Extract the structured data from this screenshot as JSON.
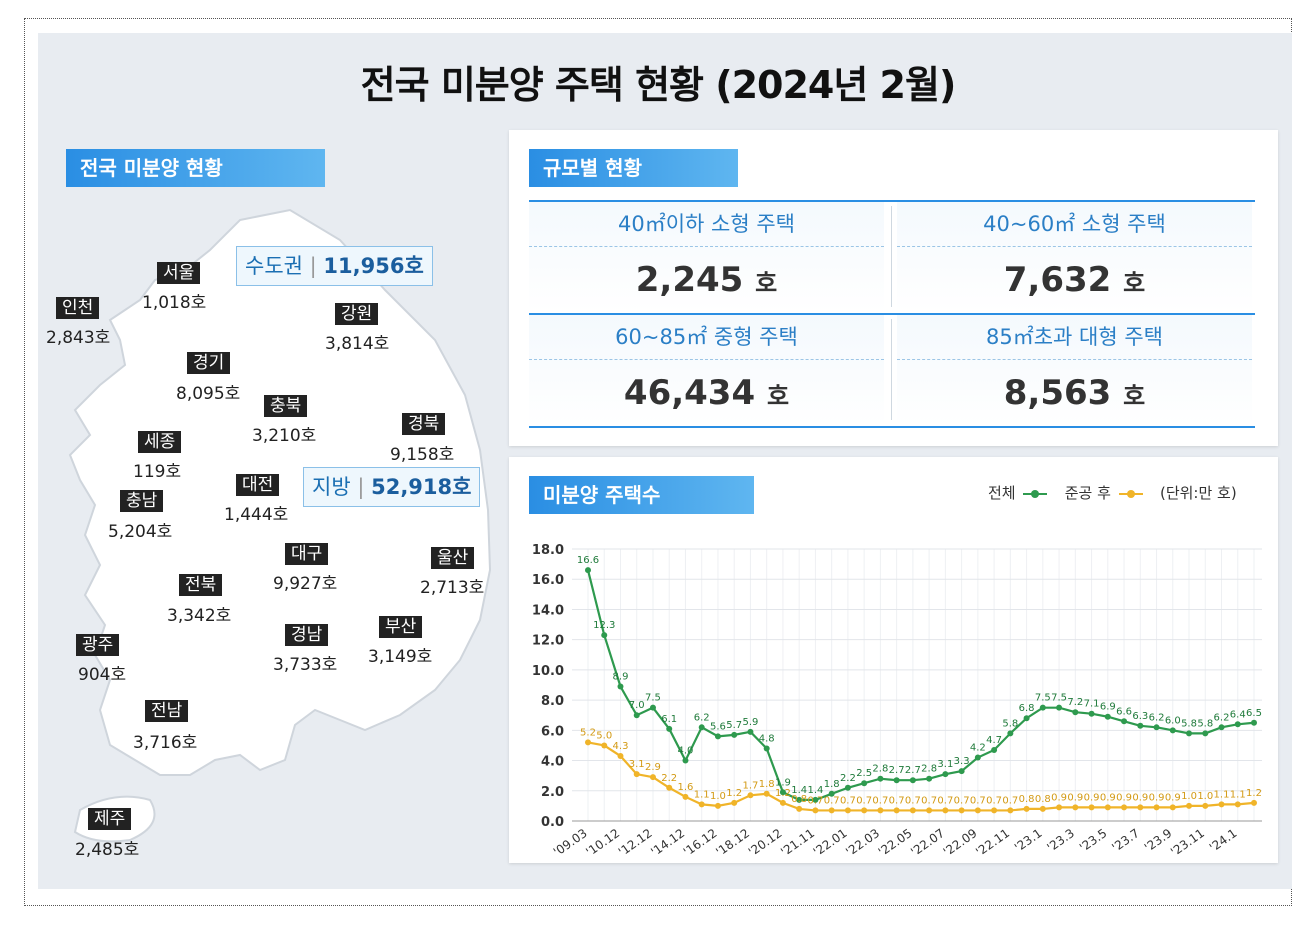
{
  "title": "전국 미분양 주택 현황  (2024년 2월)",
  "sections": {
    "national": "전국 미분양 현황",
    "by_size": "규모별 현황",
    "chart": "미분양 주택수"
  },
  "areas": {
    "capital": {
      "label": "수도권",
      "value": "11,956호"
    },
    "local": {
      "label": "지방",
      "value": "52,918호"
    }
  },
  "regions": [
    {
      "name": "서울",
      "value": "1,018호"
    },
    {
      "name": "인천",
      "value": "2,843호"
    },
    {
      "name": "강원",
      "value": "3,814호"
    },
    {
      "name": "경기",
      "value": "8,095호"
    },
    {
      "name": "충북",
      "value": "3,210호"
    },
    {
      "name": "경북",
      "value": "9,158호"
    },
    {
      "name": "세종",
      "value": "119호"
    },
    {
      "name": "대전",
      "value": "1,444호"
    },
    {
      "name": "충남",
      "value": "5,204호"
    },
    {
      "name": "대구",
      "value": "9,927호"
    },
    {
      "name": "울산",
      "value": "2,713호"
    },
    {
      "name": "전북",
      "value": "3,342호"
    },
    {
      "name": "경남",
      "value": "3,733호"
    },
    {
      "name": "부산",
      "value": "3,149호"
    },
    {
      "name": "광주",
      "value": "904호"
    },
    {
      "name": "전남",
      "value": "3,716호"
    },
    {
      "name": "제주",
      "value": "2,485호"
    }
  ],
  "sizes": [
    {
      "label": "40㎡이하 소형 주택",
      "value": "2,245",
      "unit": "호"
    },
    {
      "label": "40~60㎡ 소형 주택",
      "value": "7,632",
      "unit": "호"
    },
    {
      "label": "60~85㎡ 중형 주택",
      "value": "46,434",
      "unit": "호"
    },
    {
      "label": "85㎡초과 대형 주택",
      "value": "8,563",
      "unit": "호"
    }
  ],
  "legend": {
    "total": "전체",
    "completed": "준공 후",
    "unit": "(단위:만 호)"
  },
  "colors": {
    "total": "#2e9a4e",
    "completed": "#f0b429",
    "tag": "#2a8ee3"
  },
  "chart_data": {
    "type": "line",
    "title": "미분양 주택수",
    "unit": "(단위:만 호)",
    "ylim": [
      0,
      18
    ],
    "yticks": [
      "0.0",
      "2.0",
      "4.0",
      "6.0",
      "8.0",
      "10.0",
      "12.0",
      "14.0",
      "16.0",
      "18.0"
    ],
    "xtick_labels": [
      "'09.03",
      "'10.12",
      "'12.12",
      "'14.12",
      "'16.12",
      "'18.12",
      "'20.12",
      "'21.11",
      "'22.01",
      "'22.03",
      "'22.05",
      "'22.07",
      "'22.09",
      "'22.11",
      "'23.1",
      "'23.3",
      "'23.5",
      "'23.7",
      "'23.9",
      "'23.11",
      "'24.1"
    ],
    "legend_position": "top-right",
    "grid": true,
    "series": [
      {
        "name": "전체",
        "color": "#2e9a4e",
        "values": [
          16.6,
          12.3,
          8.9,
          7.0,
          7.5,
          6.1,
          4.0,
          6.2,
          5.6,
          5.7,
          5.9,
          4.8,
          1.9,
          1.4,
          1.4,
          1.8,
          2.2,
          2.5,
          2.8,
          2.7,
          2.7,
          2.8,
          3.1,
          3.3,
          4.2,
          4.7,
          5.8,
          6.8,
          7.5,
          7.5,
          7.2,
          7.1,
          6.9,
          6.6,
          6.3,
          6.2,
          6.0,
          5.8,
          5.8,
          6.2,
          6.4,
          6.5
        ]
      },
      {
        "name": "준공 후",
        "color": "#f0b429",
        "values": [
          5.2,
          5.0,
          4.3,
          3.1,
          2.9,
          2.2,
          1.6,
          1.1,
          1.0,
          1.2,
          1.7,
          1.8,
          1.2,
          0.8,
          0.7,
          0.7,
          0.7,
          0.7,
          0.7,
          0.7,
          0.7,
          0.7,
          0.7,
          0.7,
          0.7,
          0.7,
          0.7,
          0.8,
          0.8,
          0.9,
          0.9,
          0.9,
          0.9,
          0.9,
          0.9,
          0.9,
          0.9,
          1.0,
          1.0,
          1.1,
          1.1,
          1.2
        ]
      }
    ]
  }
}
